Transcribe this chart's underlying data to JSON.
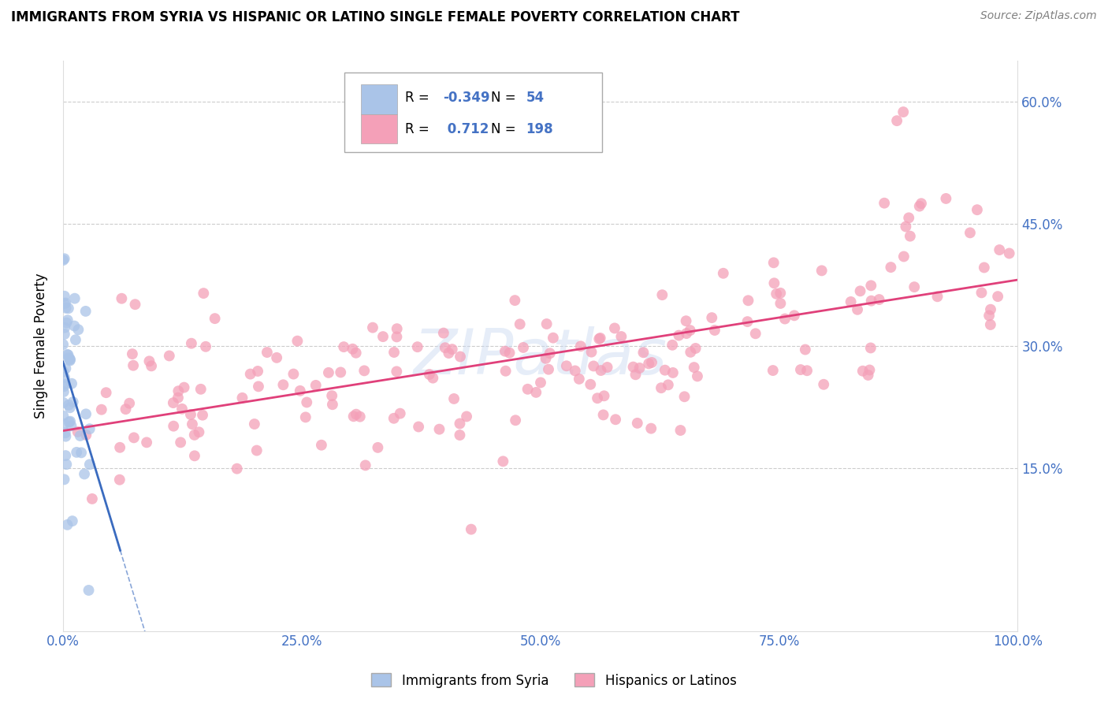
{
  "title": "IMMIGRANTS FROM SYRIA VS HISPANIC OR LATINO SINGLE FEMALE POVERTY CORRELATION CHART",
  "source": "Source: ZipAtlas.com",
  "ylabel": "Single Female Poverty",
  "legend_label_1": "Immigrants from Syria",
  "legend_label_2": "Hispanics or Latinos",
  "R1": -0.349,
  "N1": 54,
  "R2": 0.712,
  "N2": 198,
  "color_blue": "#aac4e8",
  "color_pink": "#f4a0b8",
  "color_blue_line": "#3a6bbf",
  "color_pink_line": "#e0407a",
  "color_blue_text": "#4472c4",
  "xlim": [
    0.0,
    1.0
  ],
  "ylim": [
    -0.05,
    0.65
  ],
  "yticks": [
    0.15,
    0.3,
    0.45,
    0.6
  ],
  "ytick_labels": [
    "15.0%",
    "30.0%",
    "45.0%",
    "60.0%"
  ],
  "xticks": [
    0.0,
    0.25,
    0.5,
    0.75,
    1.0
  ],
  "xtick_labels": [
    "0.0%",
    "25.0%",
    "50.0%",
    "75.0%",
    "100.0%"
  ],
  "watermark": "ZIPatlas",
  "background_color": "#ffffff",
  "grid_color": "#cccccc",
  "seed": 42
}
